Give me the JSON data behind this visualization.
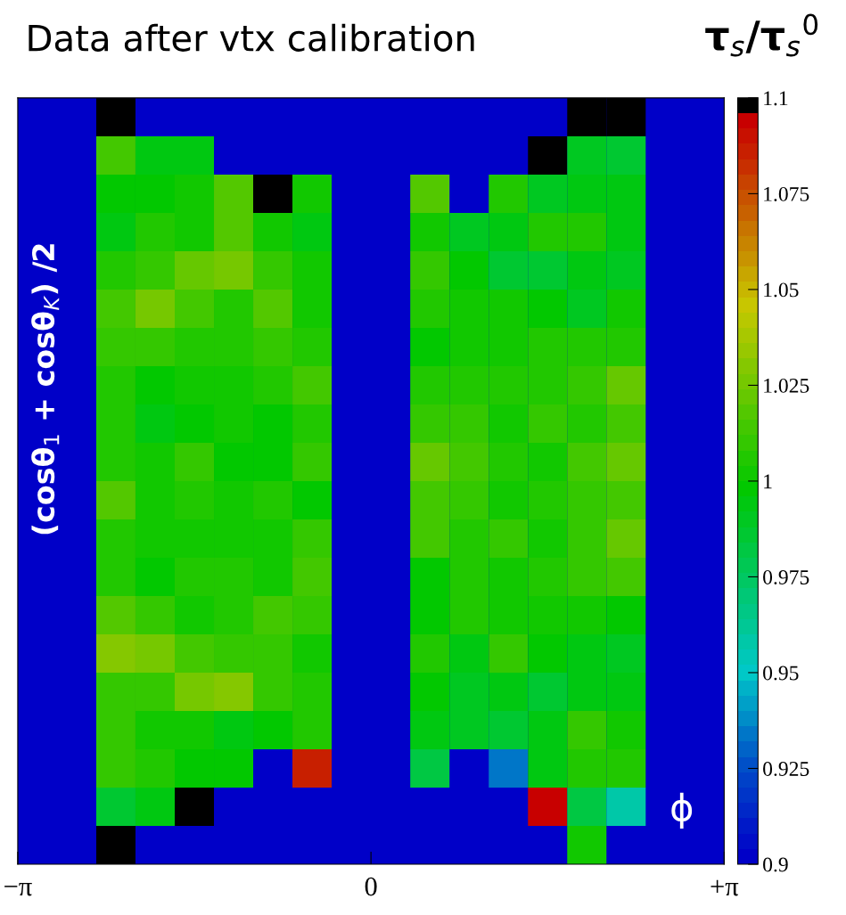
{
  "chart_data": {
    "type": "heatmap",
    "title": "Data after vtx calibration",
    "clabel": "τ$_{s}$/τ$_{s}$$^{0}$",
    "annotations": [
      "(cosθ$_{1}$ + cosθ$_{K}$) /2",
      "ϕ"
    ],
    "x": [
      -2.967,
      -2.618,
      -2.269,
      -1.92,
      -1.571,
      -1.222,
      -0.873,
      -0.524,
      -0.175,
      0.175,
      0.524,
      0.873,
      1.222,
      1.571,
      1.92,
      2.269,
      2.618,
      2.967
    ],
    "y_categories": [
      null,
      null,
      null,
      null,
      null,
      null,
      null,
      null,
      null,
      null,
      null,
      null,
      null,
      null,
      null,
      null,
      null,
      null,
      null,
      null
    ],
    "xlim": [
      -3.1416,
      3.1416
    ],
    "xticks": [
      {
        "value": -3.1416,
        "label": "−π"
      },
      0,
      {
        "value": 3.1416,
        "label": "+π"
      }
    ],
    "tick_labels": "x",
    "clim": [
      0.9,
      1.1
    ],
    "cticks": [
      0.9,
      0.925,
      0.95,
      0.975,
      1,
      1.025,
      1.05,
      1.075,
      1.1
    ],
    "cells": [
      [
        null,
        null,
        1.1,
        null,
        null,
        null,
        null,
        null,
        null,
        null,
        null,
        null,
        null,
        null,
        1.1,
        1.1,
        null,
        null
      ],
      [
        null,
        null,
        1.012,
        0.992,
        0.992,
        null,
        null,
        null,
        null,
        null,
        null,
        null,
        null,
        1.1,
        0.988,
        0.984,
        null,
        null
      ],
      [
        null,
        null,
        0.996,
        0.996,
        1.0,
        1.016,
        1.1,
        1.0,
        null,
        null,
        1.016,
        null,
        1.004,
        0.988,
        0.992,
        0.992,
        null,
        null
      ],
      [
        null,
        null,
        0.992,
        1.004,
        1.0,
        1.016,
        1.0,
        0.992,
        null,
        null,
        1.0,
        0.988,
        0.992,
        1.004,
        1.004,
        0.992,
        null,
        null
      ],
      [
        null,
        null,
        1.004,
        1.008,
        1.02,
        1.024,
        1.008,
        1.0,
        null,
        null,
        1.008,
        0.996,
        0.984,
        0.984,
        0.992,
        0.988,
        null,
        null
      ],
      [
        null,
        null,
        1.012,
        1.024,
        1.012,
        1.004,
        1.016,
        1.0,
        null,
        null,
        1.004,
        1.0,
        1.0,
        0.996,
        0.988,
        1.0,
        null,
        null
      ],
      [
        null,
        null,
        1.008,
        1.008,
        1.004,
        1.004,
        1.008,
        1.004,
        null,
        null,
        0.996,
        1.0,
        1.0,
        1.004,
        1.004,
        1.004,
        null,
        null
      ],
      [
        null,
        null,
        1.004,
        0.996,
        1.0,
        1.0,
        1.004,
        1.012,
        null,
        null,
        1.004,
        1.004,
        1.004,
        1.004,
        1.008,
        1.02,
        null,
        null
      ],
      [
        null,
        null,
        1.004,
        0.992,
        0.996,
        1.0,
        0.996,
        1.004,
        null,
        null,
        1.008,
        1.008,
        1.0,
        1.008,
        1.004,
        1.012,
        null,
        null
      ],
      [
        null,
        null,
        1.004,
        1.0,
        1.008,
        0.996,
        0.996,
        1.008,
        null,
        null,
        1.02,
        1.012,
        1.004,
        1.0,
        1.012,
        1.02,
        null,
        null
      ],
      [
        null,
        null,
        1.016,
        1.0,
        1.004,
        1.0,
        1.004,
        0.996,
        null,
        null,
        1.012,
        1.008,
        1.0,
        1.004,
        1.008,
        1.012,
        null,
        null
      ],
      [
        null,
        null,
        1.004,
        1.0,
        1.0,
        1.0,
        1.0,
        1.008,
        null,
        null,
        1.012,
        1.004,
        1.008,
        1.0,
        1.008,
        1.02,
        null,
        null
      ],
      [
        null,
        null,
        1.004,
        0.996,
        1.004,
        1.004,
        1.0,
        1.012,
        null,
        null,
        0.996,
        1.004,
        1.0,
        1.004,
        1.008,
        1.012,
        null,
        null
      ],
      [
        null,
        null,
        1.016,
        1.008,
        1.0,
        1.004,
        1.012,
        1.008,
        null,
        null,
        0.996,
        1.004,
        1.0,
        1.0,
        1.0,
        0.996,
        null,
        null
      ],
      [
        null,
        null,
        1.028,
        1.024,
        1.012,
        1.008,
        1.008,
        1.0,
        null,
        null,
        1.004,
        0.992,
        1.008,
        0.996,
        0.992,
        0.988,
        null,
        null
      ],
      [
        null,
        null,
        1.008,
        1.008,
        1.024,
        1.028,
        1.008,
        1.004,
        null,
        null,
        0.996,
        0.988,
        0.992,
        0.984,
        0.992,
        0.992,
        null,
        null
      ],
      [
        null,
        null,
        1.008,
        1.0,
        1.0,
        0.992,
        0.996,
        1.004,
        null,
        null,
        0.992,
        0.988,
        0.984,
        0.992,
        1.008,
        1.0,
        null,
        null
      ],
      [
        null,
        null,
        1.008,
        1.004,
        0.996,
        0.996,
        null,
        1.084,
        null,
        null,
        0.98,
        null,
        0.932,
        0.992,
        1.004,
        1.004,
        null,
        null
      ],
      [
        null,
        null,
        0.984,
        0.992,
        1.1,
        null,
        null,
        null,
        null,
        null,
        null,
        null,
        null,
        1.092,
        0.98,
        0.96,
        null,
        null
      ],
      [
        null,
        null,
        1.1,
        null,
        null,
        null,
        null,
        null,
        null,
        null,
        null,
        null,
        null,
        null,
        1.0,
        null,
        null,
        null
      ]
    ]
  }
}
